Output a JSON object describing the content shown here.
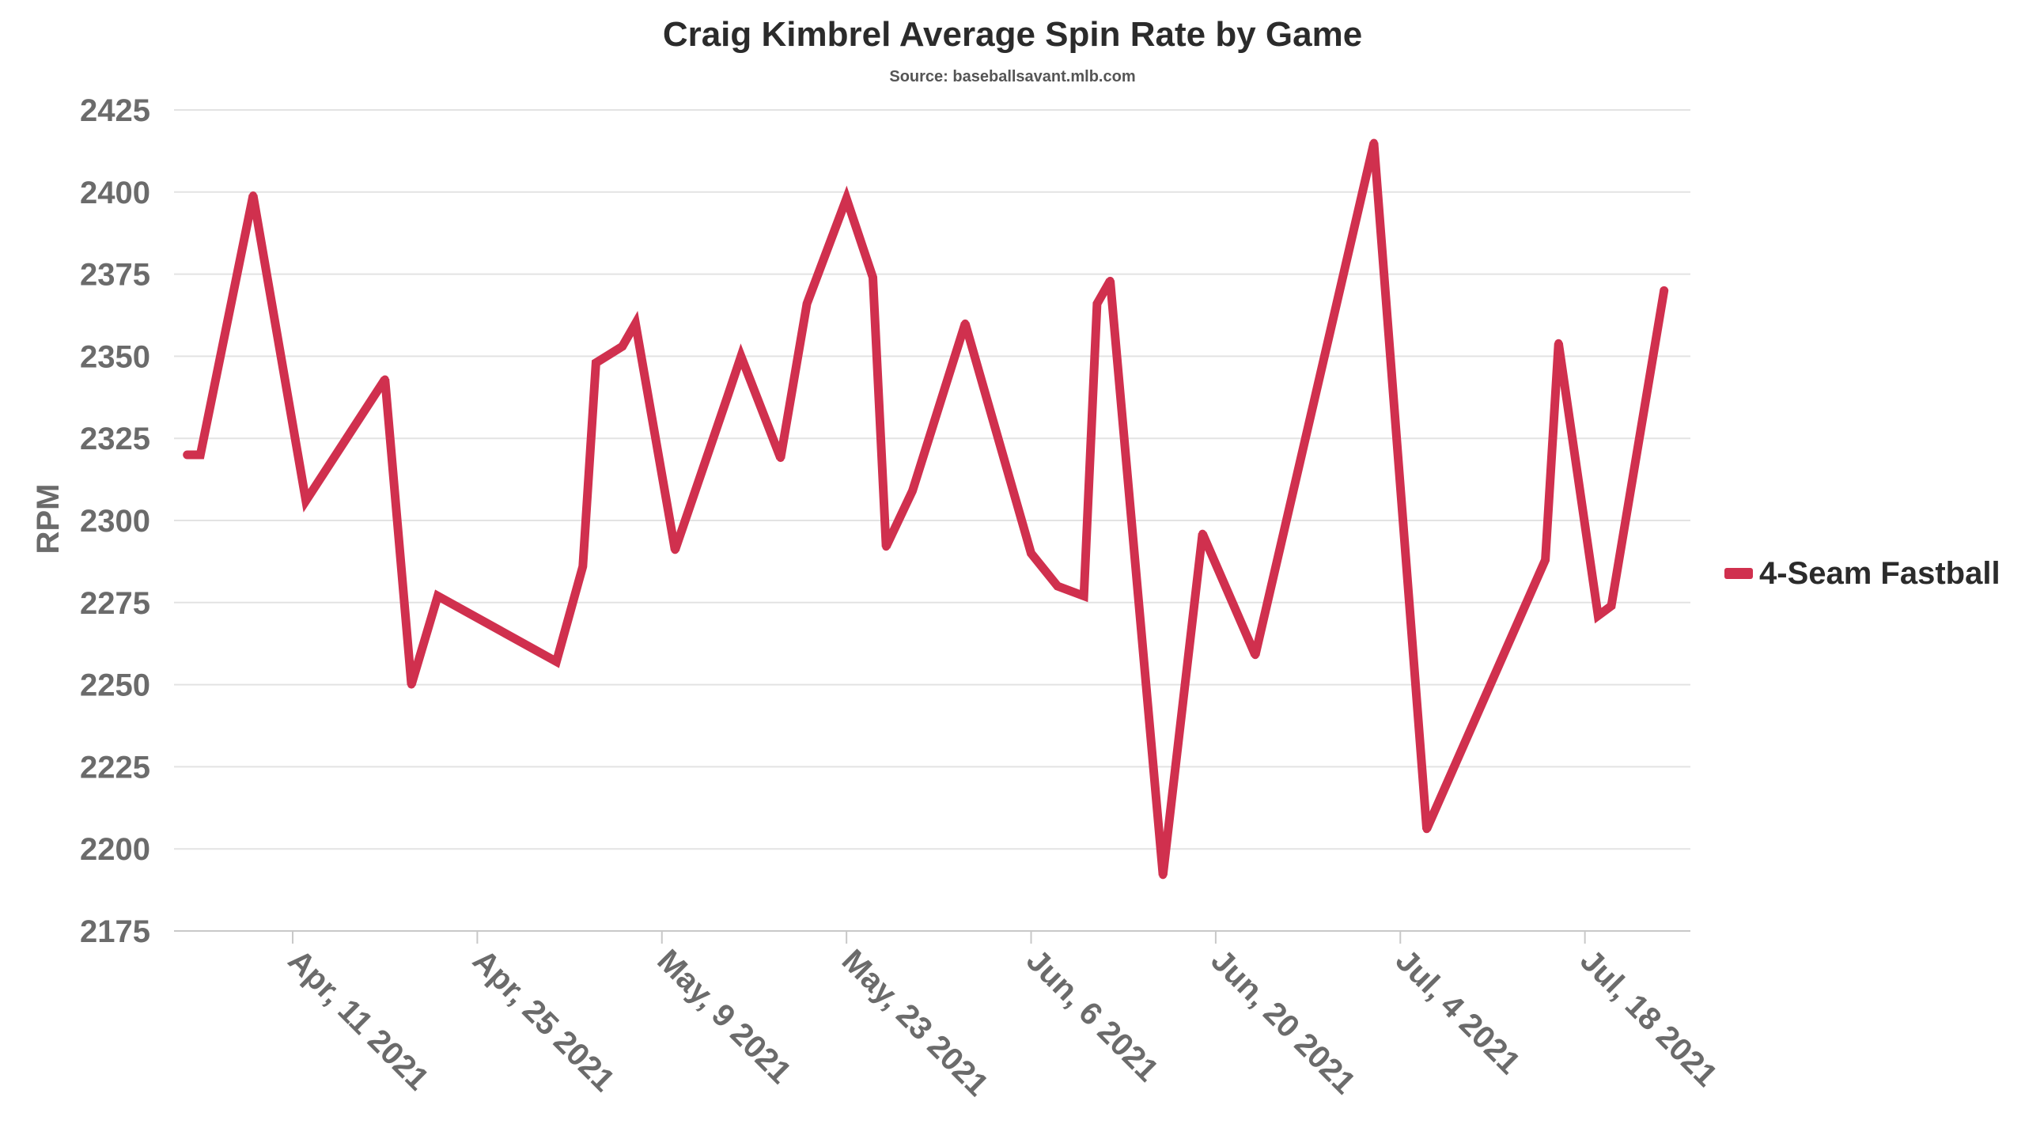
{
  "chart_data": {
    "type": "line",
    "title": "Craig Kimbrel Average Spin Rate by Game",
    "subtitle": "Source: baseballsavant.mlb.com",
    "xlabel": "",
    "ylabel": "RPM",
    "ylim": [
      2175,
      2425
    ],
    "yticks": [
      2175,
      2200,
      2225,
      2250,
      2275,
      2300,
      2325,
      2350,
      2375,
      2400,
      2425
    ],
    "xlim": [
      "2021-04-02",
      "2021-07-26"
    ],
    "xticks": [
      {
        "date": "2021-04-11",
        "label": "Apr, 11 2021"
      },
      {
        "date": "2021-04-25",
        "label": "Apr, 25 2021"
      },
      {
        "date": "2021-05-09",
        "label": "May, 9 2021"
      },
      {
        "date": "2021-05-23",
        "label": "May, 23 2021"
      },
      {
        "date": "2021-06-06",
        "label": "Jun, 6 2021"
      },
      {
        "date": "2021-06-20",
        "label": "Jun, 20 2021"
      },
      {
        "date": "2021-07-04",
        "label": "Jul, 4 2021"
      },
      {
        "date": "2021-07-18",
        "label": "Jul, 18 2021"
      }
    ],
    "grid": true,
    "legend": "right",
    "series": [
      {
        "name": "4-Seam Fastball",
        "color": "#d0304e",
        "points": [
          {
            "x": "2021-04-03",
            "y": 2320
          },
          {
            "x": "2021-04-04",
            "y": 2320
          },
          {
            "x": "2021-04-08",
            "y": 2399
          },
          {
            "x": "2021-04-12",
            "y": 2306
          },
          {
            "x": "2021-04-18",
            "y": 2343
          },
          {
            "x": "2021-04-20",
            "y": 2250
          },
          {
            "x": "2021-04-22",
            "y": 2277
          },
          {
            "x": "2021-05-01",
            "y": 2257
          },
          {
            "x": "2021-05-03",
            "y": 2286
          },
          {
            "x": "2021-05-04",
            "y": 2348
          },
          {
            "x": "2021-05-06",
            "y": 2353
          },
          {
            "x": "2021-05-07",
            "y": 2360
          },
          {
            "x": "2021-05-10",
            "y": 2291
          },
          {
            "x": "2021-05-14",
            "y": 2338
          },
          {
            "x": "2021-05-15",
            "y": 2350
          },
          {
            "x": "2021-05-18",
            "y": 2319
          },
          {
            "x": "2021-05-20",
            "y": 2366
          },
          {
            "x": "2021-05-23",
            "y": 2398
          },
          {
            "x": "2021-05-25",
            "y": 2374
          },
          {
            "x": "2021-05-26",
            "y": 2292
          },
          {
            "x": "2021-05-28",
            "y": 2309
          },
          {
            "x": "2021-06-01",
            "y": 2360
          },
          {
            "x": "2021-06-06",
            "y": 2290
          },
          {
            "x": "2021-06-08",
            "y": 2280
          },
          {
            "x": "2021-06-10",
            "y": 2277
          },
          {
            "x": "2021-06-11",
            "y": 2366
          },
          {
            "x": "2021-06-12",
            "y": 2373
          },
          {
            "x": "2021-06-16",
            "y": 2192
          },
          {
            "x": "2021-06-19",
            "y": 2296
          },
          {
            "x": "2021-06-23",
            "y": 2259
          },
          {
            "x": "2021-07-02",
            "y": 2415
          },
          {
            "x": "2021-07-06",
            "y": 2206
          },
          {
            "x": "2021-07-15",
            "y": 2288
          },
          {
            "x": "2021-07-16",
            "y": 2354
          },
          {
            "x": "2021-07-19",
            "y": 2271
          },
          {
            "x": "2021-07-20",
            "y": 2274
          },
          {
            "x": "2021-07-24",
            "y": 2370
          }
        ]
      }
    ]
  }
}
